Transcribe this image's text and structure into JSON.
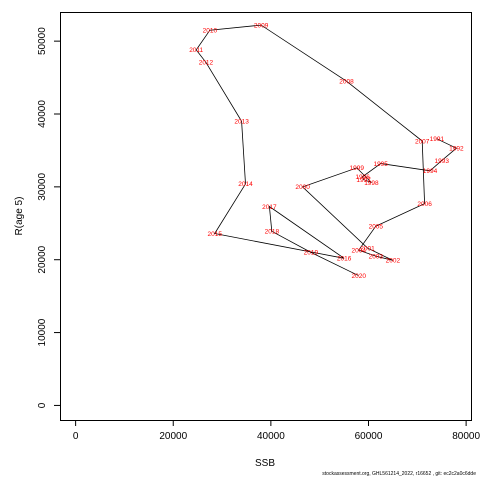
{
  "chart_data": {
    "type": "line",
    "title": "",
    "xlabel": "SSB",
    "ylabel": "R(age 5)",
    "xlim": [
      -3200,
      81000
    ],
    "ylim": [
      -2000,
      54000
    ],
    "xticks": [
      0,
      20000,
      40000,
      60000,
      80000
    ],
    "yticks": [
      0,
      10000,
      20000,
      30000,
      40000,
      50000
    ],
    "grid": false,
    "line_color": "#000000",
    "label_color": "#ff0000",
    "points": [
      {
        "year": "1991",
        "x": 74000,
        "y": 36600
      },
      {
        "year": "1992",
        "x": 78000,
        "y": 35300
      },
      {
        "year": "1993",
        "x": 75000,
        "y": 33600
      },
      {
        "year": "1994",
        "x": 72600,
        "y": 32200
      },
      {
        "year": "1995",
        "x": 62500,
        "y": 33200
      },
      {
        "year": "1996",
        "x": 58800,
        "y": 31400
      },
      {
        "year": "1997",
        "x": 59000,
        "y": 31000
      },
      {
        "year": "1998",
        "x": 60600,
        "y": 30600
      },
      {
        "year": "1999",
        "x": 57600,
        "y": 32600
      },
      {
        "year": "2000",
        "x": 46500,
        "y": 30000
      },
      {
        "year": "2001",
        "x": 59800,
        "y": 21600
      },
      {
        "year": "2002",
        "x": 65000,
        "y": 19900
      },
      {
        "year": "2003",
        "x": 61500,
        "y": 20500
      },
      {
        "year": "2004",
        "x": 58000,
        "y": 21300
      },
      {
        "year": "2005",
        "x": 61500,
        "y": 24600
      },
      {
        "year": "2006",
        "x": 71500,
        "y": 27700
      },
      {
        "year": "2007",
        "x": 71000,
        "y": 36300
      },
      {
        "year": "2008",
        "x": 55500,
        "y": 44500
      },
      {
        "year": "2009",
        "x": 38000,
        "y": 52200
      },
      {
        "year": "2010",
        "x": 27500,
        "y": 51500
      },
      {
        "year": "2011",
        "x": 24700,
        "y": 48800
      },
      {
        "year": "2012",
        "x": 26700,
        "y": 47100
      },
      {
        "year": "2013",
        "x": 34000,
        "y": 39000
      },
      {
        "year": "2014",
        "x": 34800,
        "y": 30400
      },
      {
        "year": "2015",
        "x": 28500,
        "y": 23600
      },
      {
        "year": "2016",
        "x": 55000,
        "y": 20200
      },
      {
        "year": "2017",
        "x": 39700,
        "y": 27300
      },
      {
        "year": "2018",
        "x": 40200,
        "y": 23900
      },
      {
        "year": "2019",
        "x": 48200,
        "y": 21000
      },
      {
        "year": "2020",
        "x": 58000,
        "y": 17800
      }
    ]
  },
  "footer": {
    "text": "stockassessment.org, GHL561214_2022, r16652 , git: ec2c2a0c6dde"
  }
}
